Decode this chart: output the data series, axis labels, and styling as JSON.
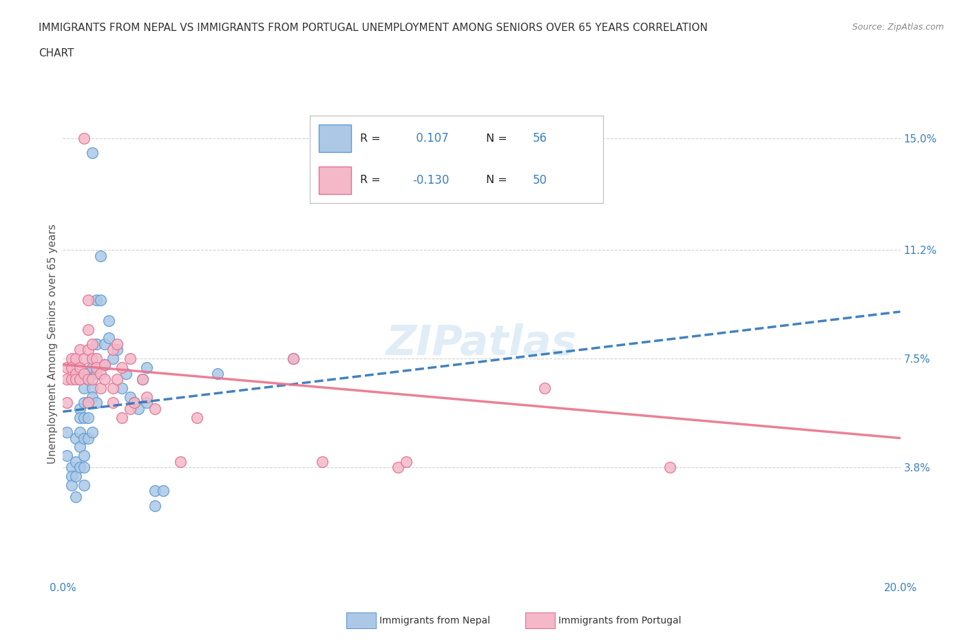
{
  "title_line1": "IMMIGRANTS FROM NEPAL VS IMMIGRANTS FROM PORTUGAL UNEMPLOYMENT AMONG SENIORS OVER 65 YEARS CORRELATION",
  "title_line2": "CHART",
  "source_text": "Source: ZipAtlas.com",
  "ylabel": "Unemployment Among Seniors over 65 years",
  "xlim": [
    0.0,
    0.2
  ],
  "ylim": [
    0.0,
    0.16
  ],
  "yticks": [
    0.038,
    0.075,
    0.112,
    0.15
  ],
  "yticklabels": [
    "3.8%",
    "7.5%",
    "11.2%",
    "15.0%"
  ],
  "nepal_color": "#adc8e6",
  "nepal_edge_color": "#5b9bd5",
  "portugal_color": "#f4b8c8",
  "portugal_edge_color": "#e07090",
  "nepal_R": 0.107,
  "nepal_N": 56,
  "portugal_R": -0.13,
  "portugal_N": 50,
  "nepal_line_color": "#2e75b6",
  "portugal_line_color": "#e8738a",
  "legend_label_nepal": "Immigrants from Nepal",
  "legend_label_portugal": "Immigrants from Portugal",
  "watermark": "ZIPatlas",
  "nepal_line_x": [
    0.0,
    0.2
  ],
  "nepal_line_y": [
    0.057,
    0.091
  ],
  "portugal_line_x": [
    0.0,
    0.2
  ],
  "portugal_line_y": [
    0.073,
    0.048
  ],
  "nepal_points": [
    [
      0.001,
      0.05
    ],
    [
      0.001,
      0.042
    ],
    [
      0.002,
      0.038
    ],
    [
      0.002,
      0.035
    ],
    [
      0.002,
      0.032
    ],
    [
      0.003,
      0.048
    ],
    [
      0.003,
      0.04
    ],
    [
      0.003,
      0.035
    ],
    [
      0.003,
      0.028
    ],
    [
      0.004,
      0.058
    ],
    [
      0.004,
      0.055
    ],
    [
      0.004,
      0.05
    ],
    [
      0.004,
      0.045
    ],
    [
      0.004,
      0.038
    ],
    [
      0.005,
      0.065
    ],
    [
      0.005,
      0.06
    ],
    [
      0.005,
      0.055
    ],
    [
      0.005,
      0.048
    ],
    [
      0.005,
      0.042
    ],
    [
      0.005,
      0.038
    ],
    [
      0.005,
      0.032
    ],
    [
      0.006,
      0.07
    ],
    [
      0.006,
      0.068
    ],
    [
      0.006,
      0.06
    ],
    [
      0.006,
      0.055
    ],
    [
      0.006,
      0.048
    ],
    [
      0.007,
      0.072
    ],
    [
      0.007,
      0.065
    ],
    [
      0.007,
      0.062
    ],
    [
      0.007,
      0.05
    ],
    [
      0.007,
      0.145
    ],
    [
      0.008,
      0.095
    ],
    [
      0.008,
      0.08
    ],
    [
      0.008,
      0.07
    ],
    [
      0.008,
      0.06
    ],
    [
      0.009,
      0.11
    ],
    [
      0.009,
      0.095
    ],
    [
      0.01,
      0.08
    ],
    [
      0.01,
      0.073
    ],
    [
      0.011,
      0.088
    ],
    [
      0.011,
      0.082
    ],
    [
      0.012,
      0.075
    ],
    [
      0.013,
      0.078
    ],
    [
      0.014,
      0.065
    ],
    [
      0.015,
      0.07
    ],
    [
      0.016,
      0.062
    ],
    [
      0.017,
      0.06
    ],
    [
      0.018,
      0.058
    ],
    [
      0.019,
      0.068
    ],
    [
      0.02,
      0.072
    ],
    [
      0.02,
      0.06
    ],
    [
      0.022,
      0.03
    ],
    [
      0.022,
      0.025
    ],
    [
      0.024,
      0.03
    ],
    [
      0.037,
      0.07
    ],
    [
      0.055,
      0.075
    ]
  ],
  "portugal_points": [
    [
      0.001,
      0.072
    ],
    [
      0.001,
      0.068
    ],
    [
      0.001,
      0.06
    ],
    [
      0.002,
      0.075
    ],
    [
      0.002,
      0.072
    ],
    [
      0.002,
      0.068
    ],
    [
      0.003,
      0.075
    ],
    [
      0.003,
      0.07
    ],
    [
      0.003,
      0.068
    ],
    [
      0.004,
      0.078
    ],
    [
      0.004,
      0.072
    ],
    [
      0.004,
      0.068
    ],
    [
      0.005,
      0.15
    ],
    [
      0.005,
      0.075
    ],
    [
      0.005,
      0.07
    ],
    [
      0.006,
      0.095
    ],
    [
      0.006,
      0.085
    ],
    [
      0.006,
      0.078
    ],
    [
      0.006,
      0.068
    ],
    [
      0.006,
      0.06
    ],
    [
      0.007,
      0.08
    ],
    [
      0.007,
      0.075
    ],
    [
      0.007,
      0.068
    ],
    [
      0.008,
      0.075
    ],
    [
      0.008,
      0.072
    ],
    [
      0.009,
      0.07
    ],
    [
      0.009,
      0.065
    ],
    [
      0.01,
      0.073
    ],
    [
      0.01,
      0.068
    ],
    [
      0.012,
      0.078
    ],
    [
      0.012,
      0.065
    ],
    [
      0.012,
      0.06
    ],
    [
      0.013,
      0.08
    ],
    [
      0.013,
      0.068
    ],
    [
      0.014,
      0.072
    ],
    [
      0.014,
      0.055
    ],
    [
      0.016,
      0.075
    ],
    [
      0.016,
      0.058
    ],
    [
      0.017,
      0.06
    ],
    [
      0.019,
      0.068
    ],
    [
      0.02,
      0.062
    ],
    [
      0.022,
      0.058
    ],
    [
      0.028,
      0.04
    ],
    [
      0.032,
      0.055
    ],
    [
      0.055,
      0.075
    ],
    [
      0.062,
      0.04
    ],
    [
      0.08,
      0.038
    ],
    [
      0.082,
      0.04
    ],
    [
      0.115,
      0.065
    ],
    [
      0.145,
      0.038
    ]
  ]
}
